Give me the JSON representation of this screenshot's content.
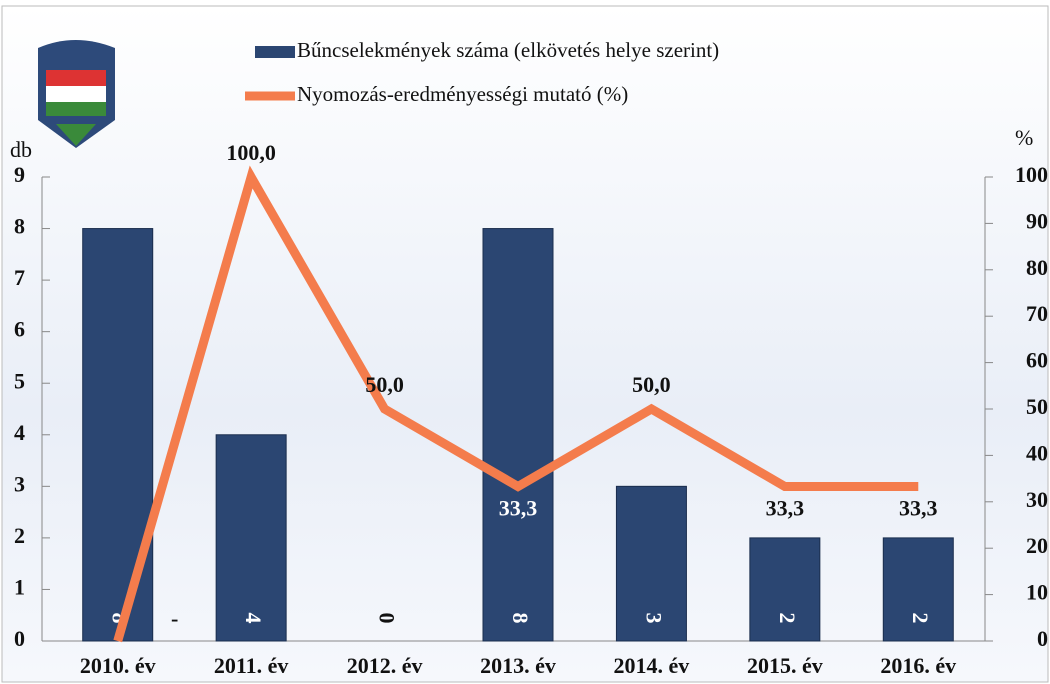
{
  "chart_data": {
    "type": "bar-line",
    "categories": [
      "2010. év",
      "2011. év",
      "2012. év",
      "2013. év",
      "2014. év",
      "2015. év",
      "2016. év"
    ],
    "series": [
      {
        "name": "Bűncselekmények száma (elkövetés helye szerint)",
        "type": "bar",
        "color": "#2b4672",
        "values": [
          8,
          4,
          0,
          8,
          3,
          2,
          2
        ]
      },
      {
        "name": "Nyomozás-eredményességi mutató (%)",
        "type": "line",
        "axis": "y2",
        "color": "#f47c4c",
        "values": [
          0,
          100,
          50,
          33.3,
          50,
          33.3,
          33.3
        ],
        "value_labels": [
          "-",
          "100,0",
          "50,0",
          "33,3",
          "50,0",
          "33,3",
          "33,3"
        ]
      }
    ],
    "ylabel": "db",
    "y2label": "%",
    "ylim": [
      0,
      9
    ],
    "yticks": [
      0,
      1,
      2,
      3,
      4,
      5,
      6,
      7,
      8,
      9
    ],
    "y2lim": [
      0,
      100
    ],
    "y2ticks": [
      0,
      10,
      20,
      30,
      40,
      50,
      60,
      70,
      80,
      90,
      100
    ]
  }
}
